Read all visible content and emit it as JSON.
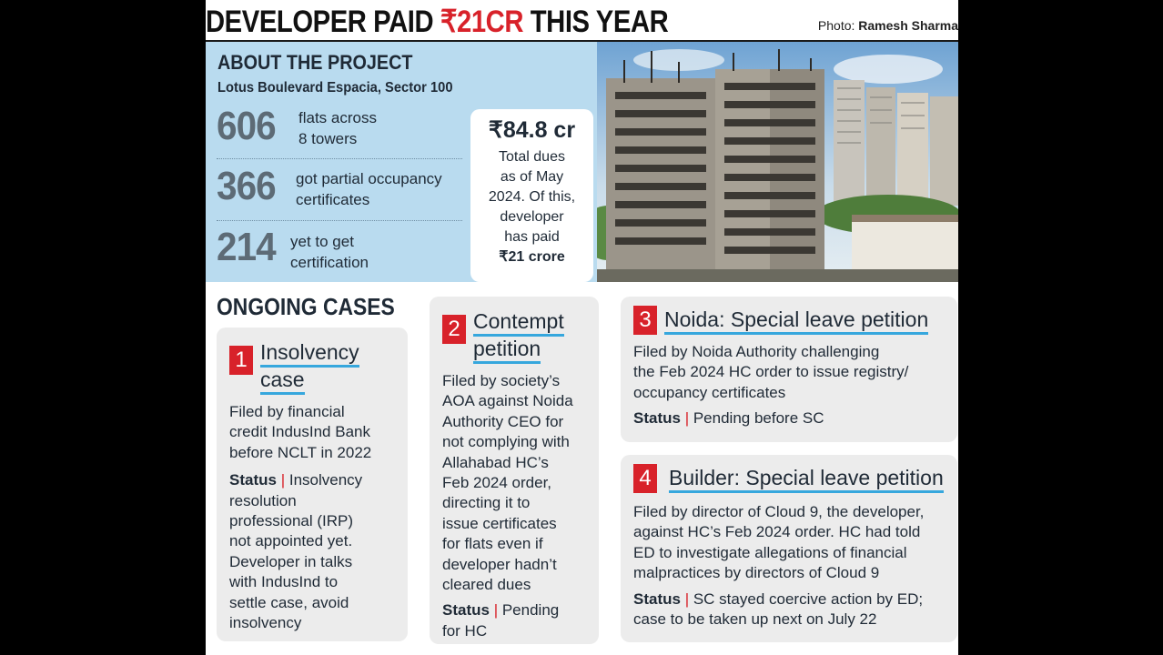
{
  "headline": {
    "part1": "DEVELOPER PAID ",
    "highlight": "₹21CR",
    "part2": " THIS YEAR"
  },
  "photo_credit": {
    "label": "Photo: ",
    "name": "Ramesh Sharma"
  },
  "about": {
    "title": "ABOUT THE PROJECT",
    "subtitle": "Lotus Boulevard Espacia, Sector 100",
    "stats": [
      {
        "number": "606",
        "line1": "flats across",
        "line2": "8 towers"
      },
      {
        "number": "366",
        "line1": "got partial occupancy",
        "line2": "certificates"
      },
      {
        "number": "214",
        "line1": "yet to get",
        "line2": "certification"
      }
    ]
  },
  "total_dues": {
    "amount": "₹84.8 cr",
    "lines": [
      "Total dues",
      "as of May",
      "2024. Of this,",
      "developer",
      "has paid"
    ],
    "paid": "₹21 crore"
  },
  "ongoing_title": "ONGOING CASES",
  "status_label": "Status",
  "status_sep": " | ",
  "cases": [
    {
      "number": "1",
      "title_lines": [
        "Insolvency",
        "case"
      ],
      "body_lines": [
        "Filed by financial",
        "credit IndusInd Bank",
        "before NCLT in 2022"
      ],
      "status_lines": [
        "Insolvency",
        "resolution",
        "professional (IRP)",
        "not appointed yet.",
        "Developer in talks",
        "with IndusInd to",
        "settle case, avoid",
        "insolvency"
      ]
    },
    {
      "number": "2",
      "title_lines": [
        "Contempt",
        "petition"
      ],
      "body_lines": [
        "Filed by society’s",
        "AOA against Noida",
        "Authority CEO for",
        "not complying with",
        "Allahabad HC’s",
        "Feb 2024 order,",
        "directing it to",
        "issue certificates",
        "for flats even if",
        "developer hadn’t",
        "cleared dues"
      ],
      "status_lines": [
        "Pending",
        "for HC"
      ]
    },
    {
      "number": "3",
      "title_lines": [
        "Noida: Special leave petition"
      ],
      "body_lines": [
        "Filed by Noida Authority challenging",
        "the Feb 2024 HC order to issue registry/",
        "occupancy certificates"
      ],
      "status_lines": [
        "Pending before SC"
      ]
    },
    {
      "number": "4",
      "title_lines": [
        "Builder: Special leave petition"
      ],
      "body_lines": [
        "Filed by director of Cloud 9, the developer,",
        "against HC’s Feb 2024 order. HC had told",
        "ED to investigate allegations of financial",
        "malpractices by directors of Cloud 9"
      ],
      "status_lines": [
        "SC stayed coercive action by ED;",
        "case to be taken up next on July 22"
      ]
    }
  ],
  "colors": {
    "accent_red": "#d8222a",
    "panel_blue": "#b9dbef",
    "card_grey": "#ececec",
    "underline_blue": "#36a7dd"
  }
}
